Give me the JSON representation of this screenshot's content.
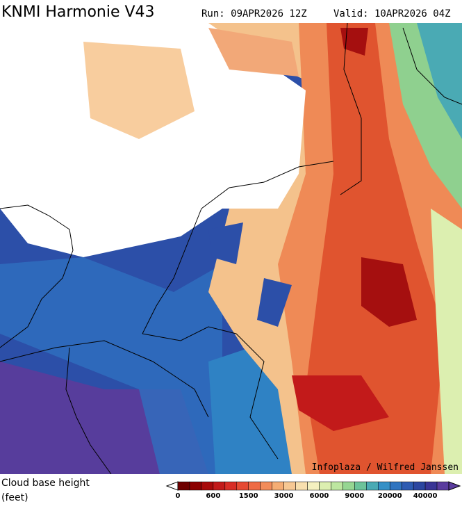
{
  "header": {
    "title": "KNMI Harmonie V43",
    "run": "Run: 09APR2026 12Z",
    "valid": "Valid: 10APR2026 04Z"
  },
  "map": {
    "credit": "Infoplaza / Wilfred Janssen"
  },
  "legend": {
    "title": "Cloud base height",
    "unit": "(feet)",
    "labels": [
      0,
      600,
      1500,
      3000,
      6000,
      9000,
      20000,
      40000
    ],
    "colors": [
      "#6e0000",
      "#8c0000",
      "#a80a0a",
      "#c21a1a",
      "#d82d26",
      "#e64a33",
      "#ee6b45",
      "#f28c5a",
      "#f5ad74",
      "#f7c893",
      "#f8dfae",
      "#f4f0c0",
      "#dcefb0",
      "#bde6a0",
      "#96d692",
      "#6cc39a",
      "#4aaab4",
      "#3590c6",
      "#2f74c0",
      "#2d5bb2",
      "#2c46a0",
      "#3a3596",
      "#5a3c9e"
    ]
  }
}
